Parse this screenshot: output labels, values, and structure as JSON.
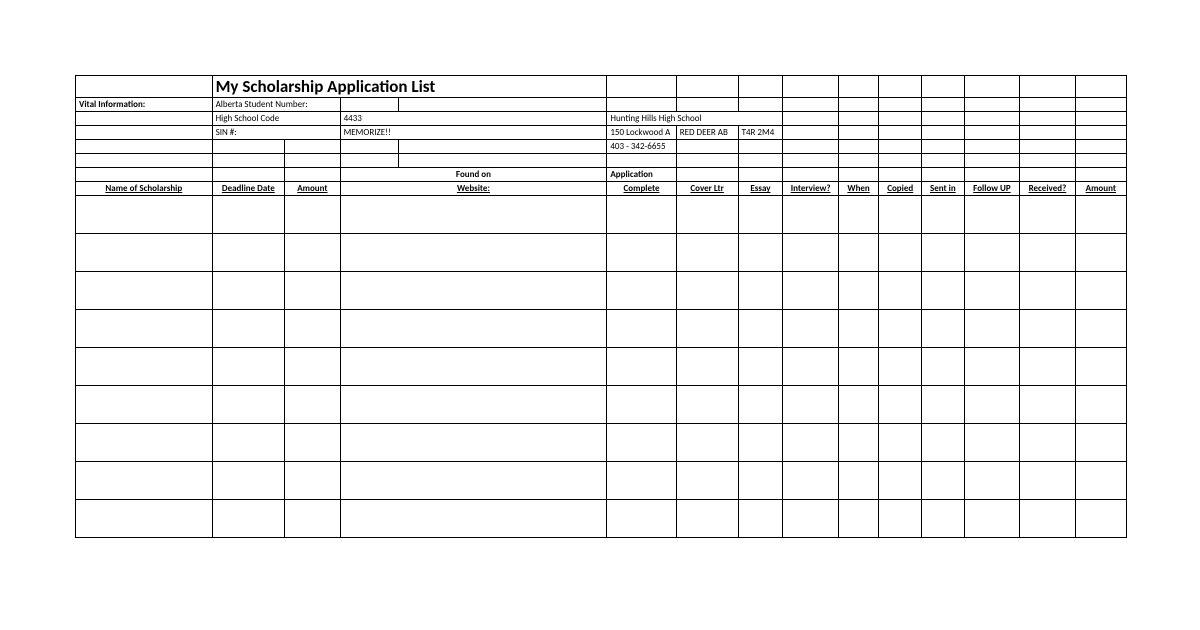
{
  "title": "My Scholarship Application List",
  "info": {
    "vital_label": "Vital Information:",
    "asn_label": "Alberta Student Number:",
    "hsc_label": "High School Code",
    "hsc_value": "4433",
    "sin_label": "SIN #:",
    "sin_value": "MEMORIZE!!",
    "school_name": "Hunting Hills High School",
    "school_addr1": "150 Lockwood A",
    "school_addr2": "RED DEER AB",
    "school_addr3": "T4R 2M4",
    "school_phone": "403 - 342-6655"
  },
  "headers": {
    "name": "Name of Scholarship",
    "deadline": "Deadline Date",
    "amount1": "Amount",
    "foundon1": "Found on",
    "foundon2": "Website:",
    "appcomp1": "Application",
    "appcomp2": "Complete",
    "cover": "Cover Ltr",
    "essay": "Essay",
    "interview": "Interview?",
    "when": "When",
    "copied": "Copied",
    "sentin": "Sent in",
    "followup": "Follow UP",
    "received": "Received?",
    "amount2": "Amount"
  },
  "style": {
    "border_color": "#000000",
    "background": "#ffffff",
    "title_fontsize": 17,
    "cell_fontsize": 9,
    "header_row_height": 14,
    "data_row_height": 38
  }
}
